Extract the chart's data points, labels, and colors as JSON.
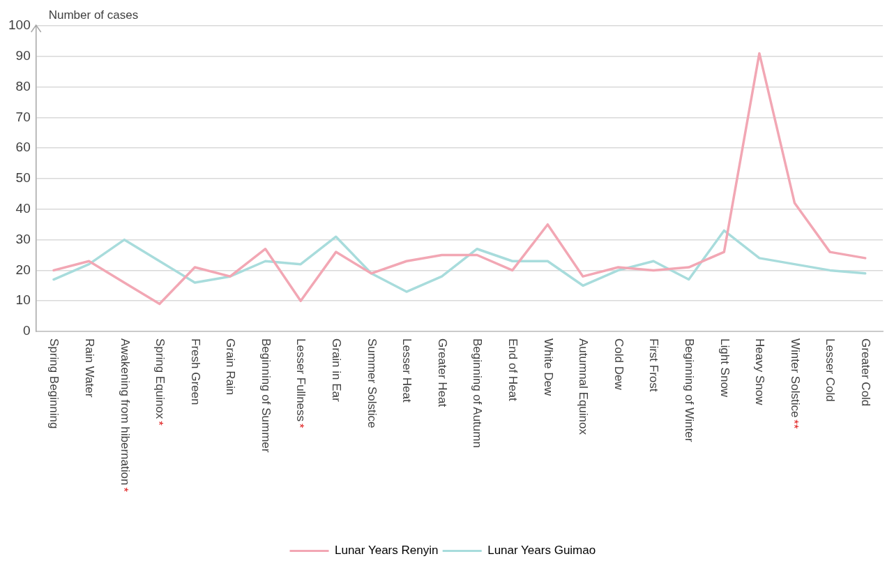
{
  "chart_data": {
    "type": "line",
    "ylabel": "Number of cases",
    "categories": [
      "Spring Beginning",
      "Rain Water",
      "Awakening from hibernation*",
      "Spring Equinox*",
      "Fresh Green",
      "Grain Rain",
      "Beginning of Summer",
      "Lesser Fullness*",
      "Grain in Ear",
      "Summer Solstice",
      "Lesser Heat",
      "Greater Heat",
      "Beginning of Autumn",
      "End of Heat",
      "White Dew",
      "Autumnal Equinox",
      "Cold Dew",
      "First Frost",
      "Beginning of Winter",
      "Light Snow",
      "Heavy Snow",
      "Winter Solstice**",
      "Lesser Cold",
      "Greater Cold"
    ],
    "series": [
      {
        "name": "Lunar Years Renyin",
        "color": "#f2a7b4",
        "values": [
          20,
          23,
          16,
          9,
          21,
          18,
          27,
          10,
          26,
          19,
          23,
          25,
          25,
          20,
          35,
          18,
          21,
          20,
          21,
          26,
          91,
          42,
          26,
          24
        ]
      },
      {
        "name": "Lunar Years Guimao",
        "color": "#a8dcdc",
        "values": [
          17,
          22,
          30,
          23,
          16,
          18,
          23,
          22,
          31,
          19,
          13,
          18,
          27,
          23,
          23,
          15,
          20,
          23,
          17,
          33,
          24,
          22,
          20,
          19
        ]
      }
    ],
    "ylim": [
      0,
      100
    ],
    "yticks": [
      0,
      10,
      20,
      30,
      40,
      50,
      60,
      70,
      80,
      90,
      100
    ],
    "grid": "y",
    "legend": "bottom",
    "marker": "none",
    "line_style": "solid"
  }
}
